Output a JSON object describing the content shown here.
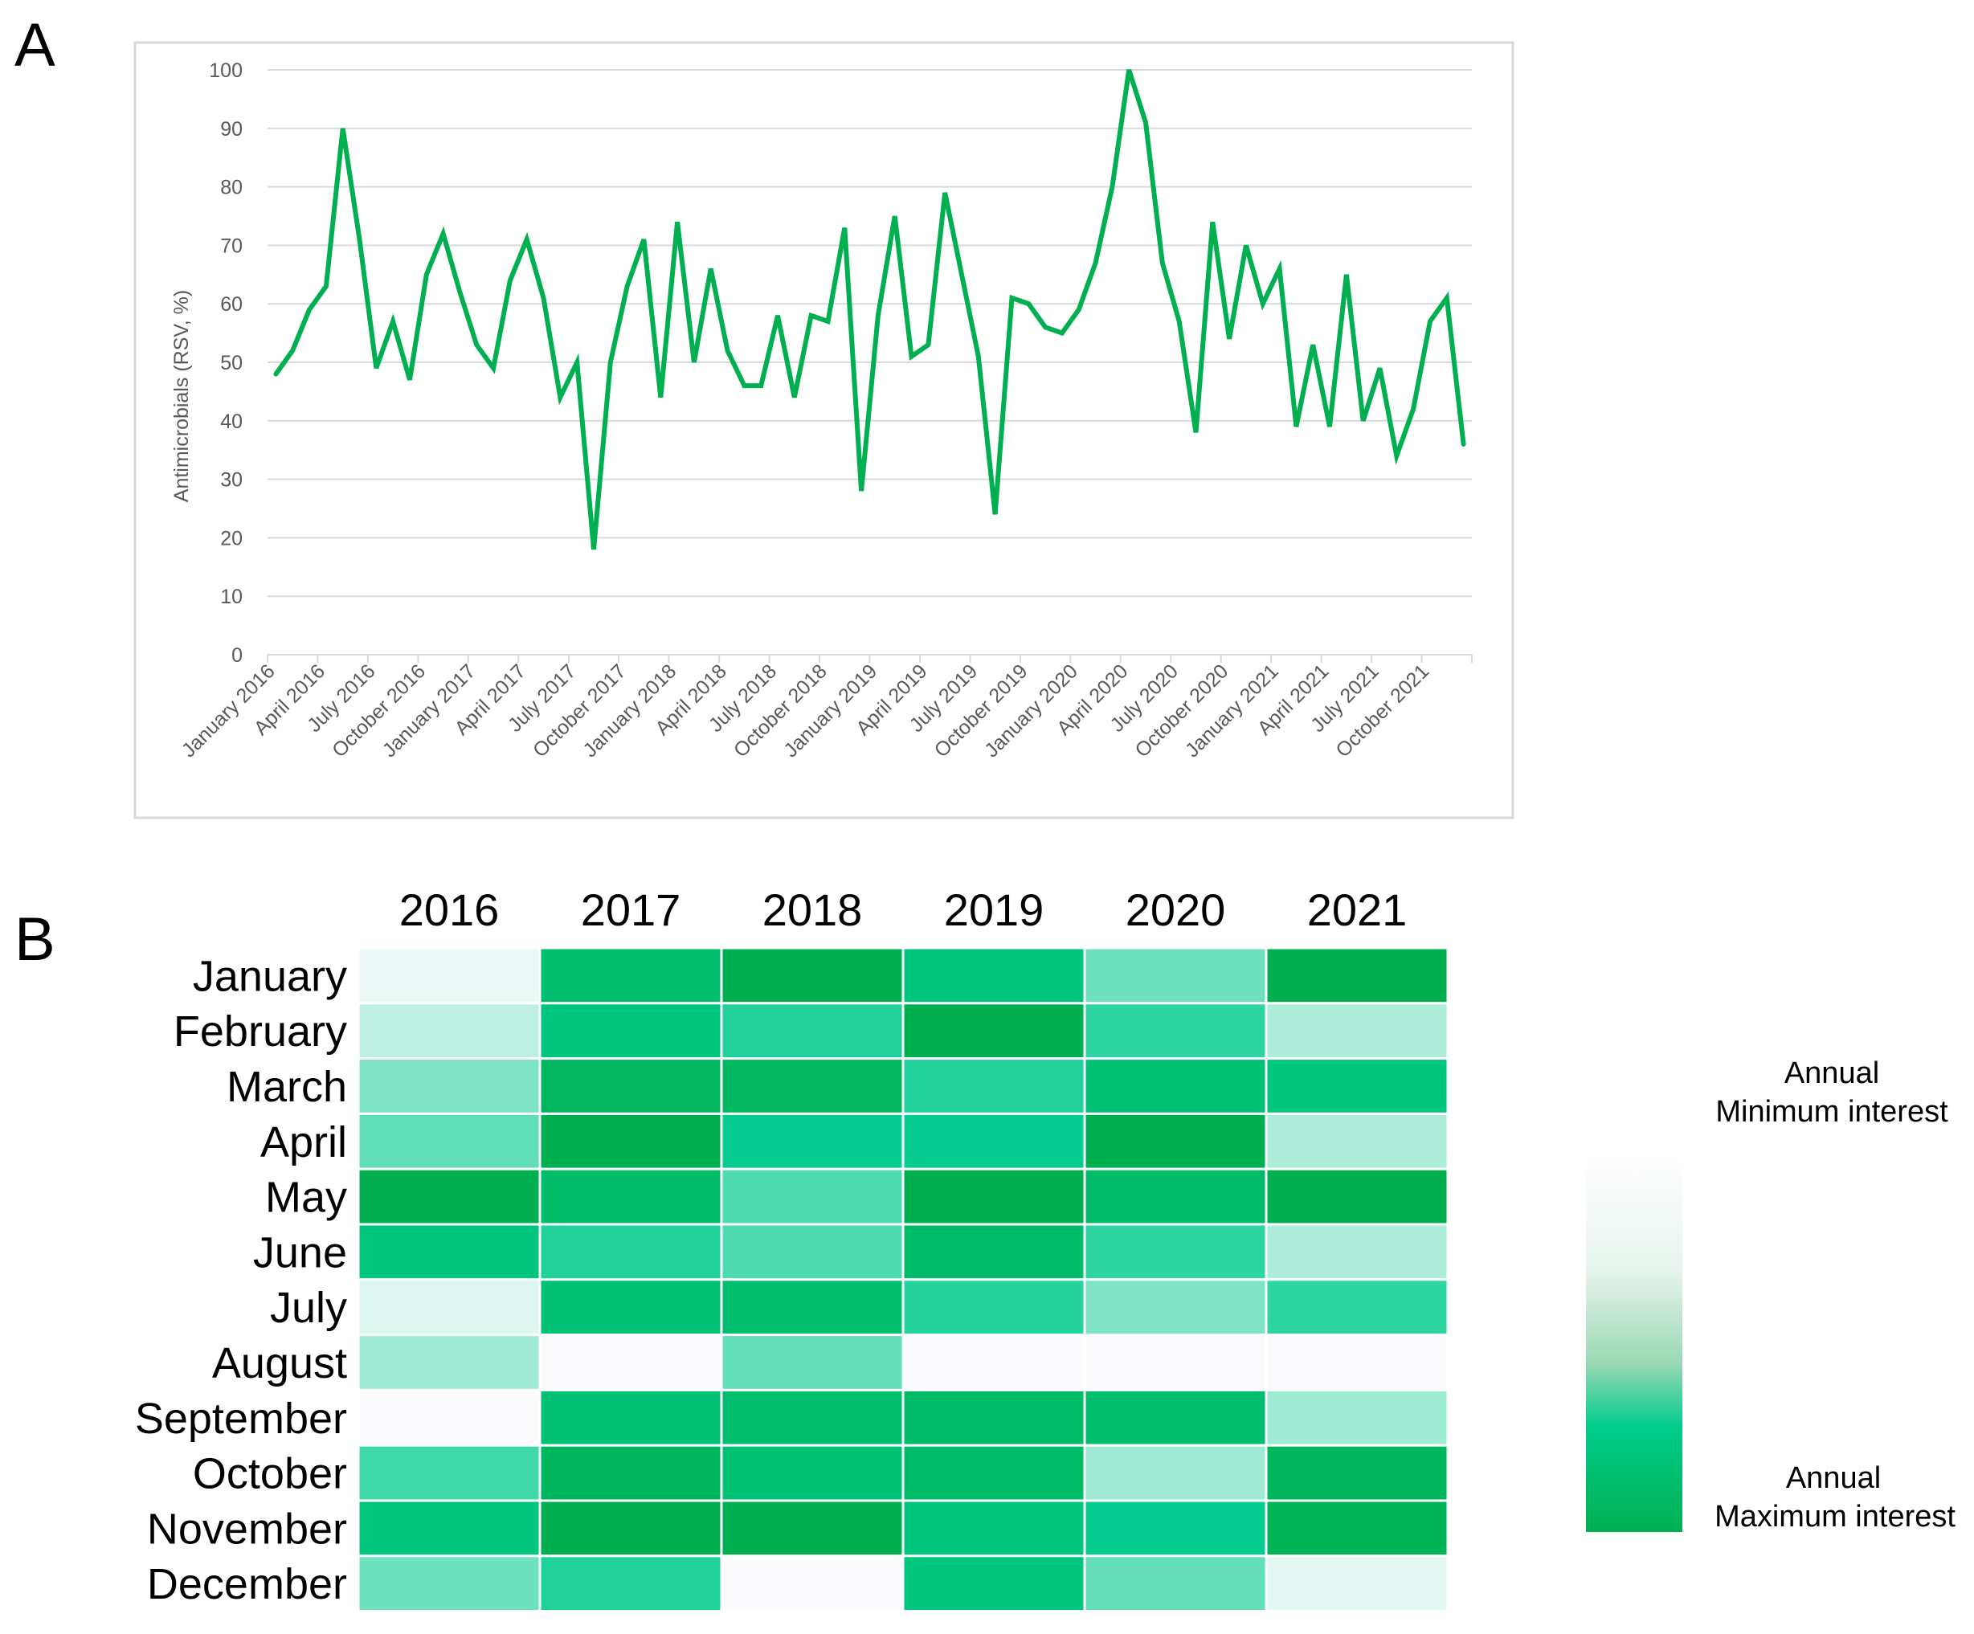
{
  "panels": {
    "a": "A",
    "b": "B"
  },
  "chart_data": [
    {
      "type": "line",
      "title": "",
      "xlabel": "",
      "ylabel": "Antimicrobials (RSV, %)",
      "ylim": [
        0,
        100
      ],
      "yticks": [
        0,
        10,
        20,
        30,
        40,
        50,
        60,
        70,
        80,
        90,
        100
      ],
      "grid": true,
      "line_color": "#00b050",
      "x": [
        "January 2016",
        "February 2016",
        "March 2016",
        "April 2016",
        "May 2016",
        "June 2016",
        "July 2016",
        "August 2016",
        "September 2016",
        "October 2016",
        "November 2016",
        "December 2016",
        "January 2017",
        "February 2017",
        "March 2017",
        "April 2017",
        "May 2017",
        "June 2017",
        "July 2017",
        "August 2017",
        "September 2017",
        "October 2017",
        "November 2017",
        "December 2017",
        "January 2018",
        "February 2018",
        "March 2018",
        "April 2018",
        "May 2018",
        "June 2018",
        "July 2018",
        "August 2018",
        "September 2018",
        "October 2018",
        "November 2018",
        "December 2018",
        "January 2019",
        "February 2019",
        "March 2019",
        "April 2019",
        "May 2019",
        "June 2019",
        "July 2019",
        "August 2019",
        "September 2019",
        "October 2019",
        "November 2019",
        "December 2019",
        "January 2020",
        "February 2020",
        "March 2020",
        "April 2020",
        "May 2020",
        "June 2020",
        "July 2020",
        "August 2020",
        "September 2020",
        "October 2020",
        "November 2020",
        "December 2020",
        "January 2021",
        "February 2021",
        "March 2021",
        "April 2021",
        "May 2021",
        "June 2021",
        "July 2021",
        "August 2021",
        "September 2021",
        "October 2021",
        "November 2021",
        "December 2021"
      ],
      "tick_labels": [
        "January 2016",
        "April 2016",
        "July 2016",
        "October 2016",
        "January 2017",
        "April 2017",
        "July 2017",
        "October 2017",
        "January 2018",
        "April 2018",
        "July 2018",
        "October 2018",
        "January 2019",
        "April 2019",
        "July 2019",
        "October 2019",
        "January 2020",
        "April 2020",
        "July 2020",
        "October 2020",
        "January 2021",
        "April 2021",
        "July 2021",
        "October 2021"
      ],
      "series": [
        {
          "values": [
            48,
            52,
            59,
            63,
            90,
            71,
            49,
            57,
            47,
            65,
            72,
            62,
            53,
            49,
            64,
            71,
            61,
            44,
            50,
            18,
            50,
            63,
            71,
            44,
            74,
            50,
            66,
            52,
            46,
            46,
            58,
            44,
            58,
            57,
            73,
            28,
            58,
            75,
            51,
            53,
            79,
            65,
            51,
            24,
            61,
            60,
            56,
            55,
            59,
            67,
            80,
            100,
            91,
            67,
            57,
            38,
            74,
            54,
            70,
            60,
            66,
            39,
            53,
            39,
            65,
            40,
            49,
            34,
            42,
            57,
            61,
            36
          ]
        }
      ]
    },
    {
      "type": "heatmap",
      "columns": [
        "2016",
        "2017",
        "2018",
        "2019",
        "2020",
        "2021"
      ],
      "rows": [
        "January",
        "February",
        "March",
        "April",
        "May",
        "June",
        "July",
        "August",
        "September",
        "October",
        "November",
        "December"
      ],
      "scale": {
        "min_color": "#fcfcfe",
        "mid_color": "#00cc8c",
        "max_color": "#00b050"
      },
      "values": [
        [
          0.05,
          0.9,
          1.0,
          0.85,
          0.45,
          1.0
        ],
        [
          0.2,
          0.85,
          0.7,
          1.0,
          0.65,
          0.25
        ],
        [
          0.4,
          0.95,
          0.95,
          0.7,
          0.88,
          0.85
        ],
        [
          0.5,
          1.0,
          0.78,
          0.78,
          1.0,
          0.25
        ],
        [
          1.0,
          0.92,
          0.55,
          1.0,
          0.92,
          1.0
        ],
        [
          0.85,
          0.7,
          0.55,
          0.92,
          0.65,
          0.25
        ],
        [
          0.1,
          0.88,
          0.9,
          0.68,
          0.4,
          0.65
        ],
        [
          0.3,
          0.0,
          0.48,
          0.0,
          0.0,
          0.0
        ],
        [
          0.0,
          0.88,
          0.9,
          0.92,
          0.9,
          0.3
        ],
        [
          0.6,
          0.96,
          0.88,
          0.92,
          0.3,
          0.96
        ],
        [
          0.85,
          1.0,
          1.0,
          0.85,
          0.78,
          0.98
        ],
        [
          0.45,
          0.7,
          0.0,
          0.85,
          0.48,
          0.08
        ]
      ],
      "legend": {
        "min_line1": "Annual",
        "min_line2": "Minimum interest",
        "max_line1": "Annual",
        "max_line2": "Maximum interest"
      }
    }
  ]
}
